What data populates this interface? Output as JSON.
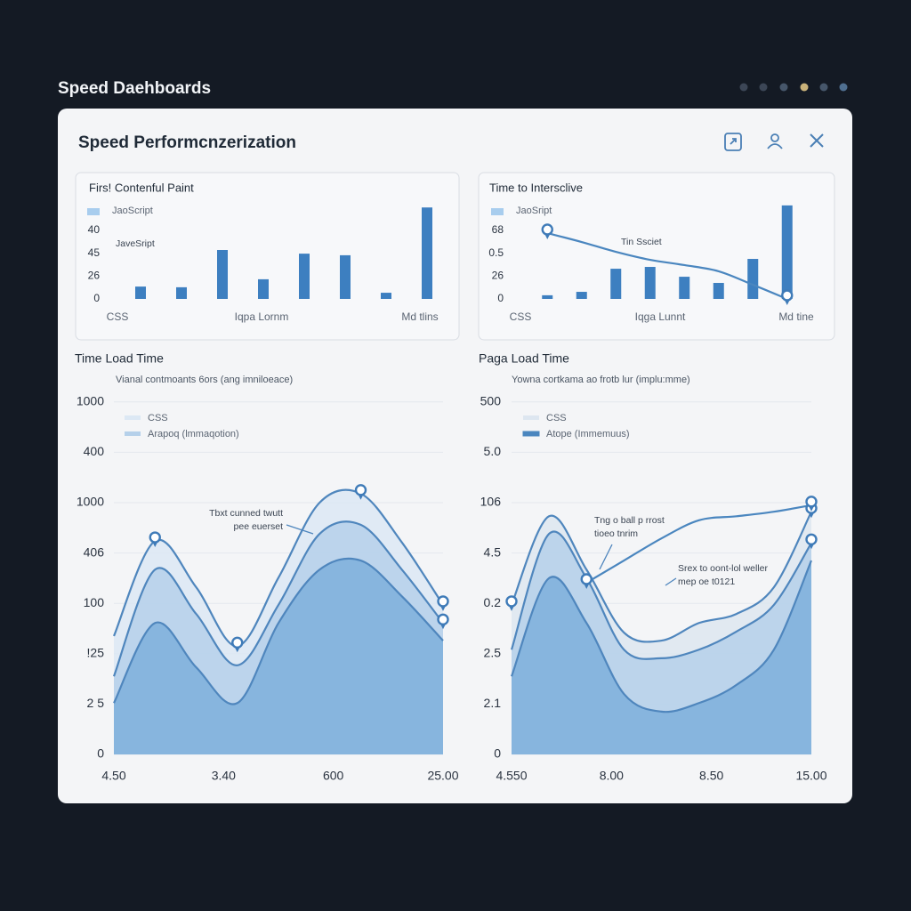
{
  "header": {
    "title": "Speed Daehboards"
  },
  "panel": {
    "title": "Speed Performcnzerization"
  },
  "chart_data": [
    {
      "type": "bar",
      "title": "Firs! Contenful Paint",
      "ylim": [
        0,
        4.2
      ],
      "yticks": [
        {
          "value": 0,
          "label": "0"
        },
        {
          "value": 1,
          "label": "26"
        },
        {
          "value": 2,
          "label": "45"
        },
        {
          "value": 3,
          "label": "40"
        }
      ],
      "x_labels": [
        "CSS",
        "Iqpa Lornm",
        "Md tlins"
      ],
      "series": [
        {
          "name": "JaoScript",
          "kind": "bar",
          "color": "#3d7fc0",
          "values": [
            0.54,
            0.51,
            2.14,
            0.86,
            1.98,
            1.91,
            0.27,
            4.0
          ]
        }
      ],
      "annotations": [
        "JaveSript"
      ]
    },
    {
      "type": "bar",
      "title": "Time to Intersclive",
      "ylim": [
        0,
        4.2
      ],
      "yticks": [
        {
          "value": 0,
          "label": "0"
        },
        {
          "value": 1,
          "label": "26"
        },
        {
          "value": 2,
          "label": "0.5"
        },
        {
          "value": 3,
          "label": "68"
        }
      ],
      "x_labels": [
        "CSS",
        "Iqga Lunnt",
        "Md tine"
      ],
      "series": [
        {
          "name": "JaoSript",
          "kind": "bar",
          "color": "#3d7fc0",
          "values": [
            0.16,
            0.31,
            1.32,
            1.4,
            0.97,
            0.7,
            1.75,
            4.09
          ]
        },
        {
          "kind": "line",
          "color": "#4a86bf",
          "values": [
            2.88,
            2.49,
            2.06,
            1.71,
            1.48,
            1.21,
            0.62,
            0
          ],
          "markers": [
            0,
            7
          ]
        }
      ],
      "annotations": [
        "Tin Ssciet"
      ]
    },
    {
      "type": "area",
      "title": "Time Load Time",
      "subtitle": "Vianal contmoants 6ors (ang imniloeace)",
      "ylim": [
        0,
        7
      ],
      "grid": true,
      "yticks": [
        {
          "value": 0,
          "label": "0"
        },
        {
          "value": 1,
          "label": "2 5"
        },
        {
          "value": 2,
          "label": "!25"
        },
        {
          "value": 3,
          "label": "100"
        },
        {
          "value": 4,
          "label": "406"
        },
        {
          "value": 5,
          "label": "1000"
        },
        {
          "value": 6,
          "label": "400"
        },
        {
          "value": 7,
          "label": "1000"
        }
      ],
      "x_labels": [
        "4.50",
        "3.40",
        "600",
        "25.00"
      ],
      "series": [
        {
          "name": "CSS",
          "kind": "area",
          "color": "#dce8f4",
          "values": [
            2.35,
            4.24,
            3.32,
            2.15,
            3.51,
            5.0,
            5.18,
            4.21,
            2.97
          ],
          "markers": [
            1,
            3,
            6,
            8
          ]
        },
        {
          "name": "Arapoq (lmmaqotion)",
          "kind": "area",
          "color": "#b5d0ea",
          "values": [
            1.55,
            3.67,
            2.79,
            1.77,
            2.97,
            4.38,
            4.56,
            3.67,
            2.61
          ],
          "markers": [
            8
          ]
        },
        {
          "kind": "area",
          "color": "#7eafdc",
          "values": [
            1.02,
            2.61,
            1.73,
            1.02,
            2.61,
            3.67,
            3.85,
            3.14,
            2.26
          ]
        }
      ],
      "annotations": [
        "Tbxt cunned twutt",
        "pee euerset"
      ]
    },
    {
      "type": "area",
      "title": "Paga Load Time",
      "subtitle": "Yowna cortkama ao frotb lur (implu:mme)",
      "ylim": [
        0,
        7
      ],
      "grid": true,
      "yticks": [
        {
          "value": 0,
          "label": "0"
        },
        {
          "value": 1,
          "label": "2.1"
        },
        {
          "value": 2,
          "label": "2.5"
        },
        {
          "value": 3,
          "label": "0.2"
        },
        {
          "value": 4,
          "label": "4.5"
        },
        {
          "value": 5,
          "label": "106"
        },
        {
          "value": 6,
          "label": "5.0"
        },
        {
          "value": 7,
          "label": "500"
        }
      ],
      "x_labels": [
        "4.550",
        "8.00",
        "8.50",
        "15.00"
      ],
      "series": [
        {
          "name": "CSS",
          "kind": "area",
          "color": "#dde6f0",
          "values": [
            2.97,
            4.73,
            3.67,
            2.42,
            2.26,
            2.61,
            2.79,
            3.32,
            4.82
          ],
          "markers": [
            0,
            8
          ]
        },
        {
          "kind": "area",
          "color": "#b5d0ea",
          "values": [
            2.08,
            4.38,
            3.5,
            2.08,
            1.91,
            2.08,
            2.44,
            2.97,
            4.2
          ],
          "markers": [
            8
          ]
        },
        {
          "kind": "area",
          "color": "#7eafdc",
          "values": [
            1.55,
            3.5,
            2.61,
            1.2,
            0.85,
            1.02,
            1.38,
            2.08,
            3.85
          ]
        },
        {
          "name": "Atope (Immemuus)",
          "kind": "line",
          "color": "#4a86bf",
          "values": [
            null,
            null,
            3.41,
            3.85,
            4.29,
            4.65,
            4.73,
            4.82,
            4.95
          ],
          "markers": [
            2,
            8
          ]
        }
      ],
      "annotations": [
        "Tng o ball p rrost",
        "tioeo tnrim",
        "Srex to oont-lol weller",
        "mep oe t0121"
      ]
    }
  ]
}
